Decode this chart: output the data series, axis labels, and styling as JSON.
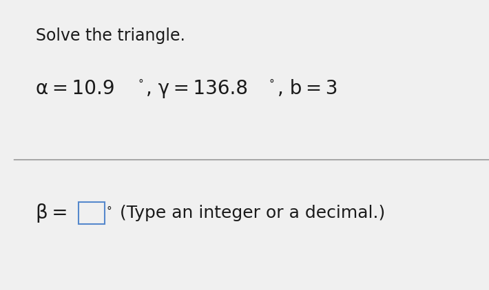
{
  "title": "Solve the triangle.",
  "alpha_text": "α = 10.9",
  "degree_sup": "°",
  "gamma_text": ", γ = 136.8",
  "b_text": ", b = 3",
  "bg_color": "#f0f0f0",
  "text_color": "#1a1a1a",
  "box_edge_color": "#5588cc",
  "divider_color": "#888888",
  "title_fontsize": 17,
  "body_fontsize": 20,
  "answer_fontsize": 20,
  "small_fontsize": 11,
  "hint_fontsize": 18,
  "figwidth": 7.1,
  "figheight": 4.22,
  "dpi": 100
}
